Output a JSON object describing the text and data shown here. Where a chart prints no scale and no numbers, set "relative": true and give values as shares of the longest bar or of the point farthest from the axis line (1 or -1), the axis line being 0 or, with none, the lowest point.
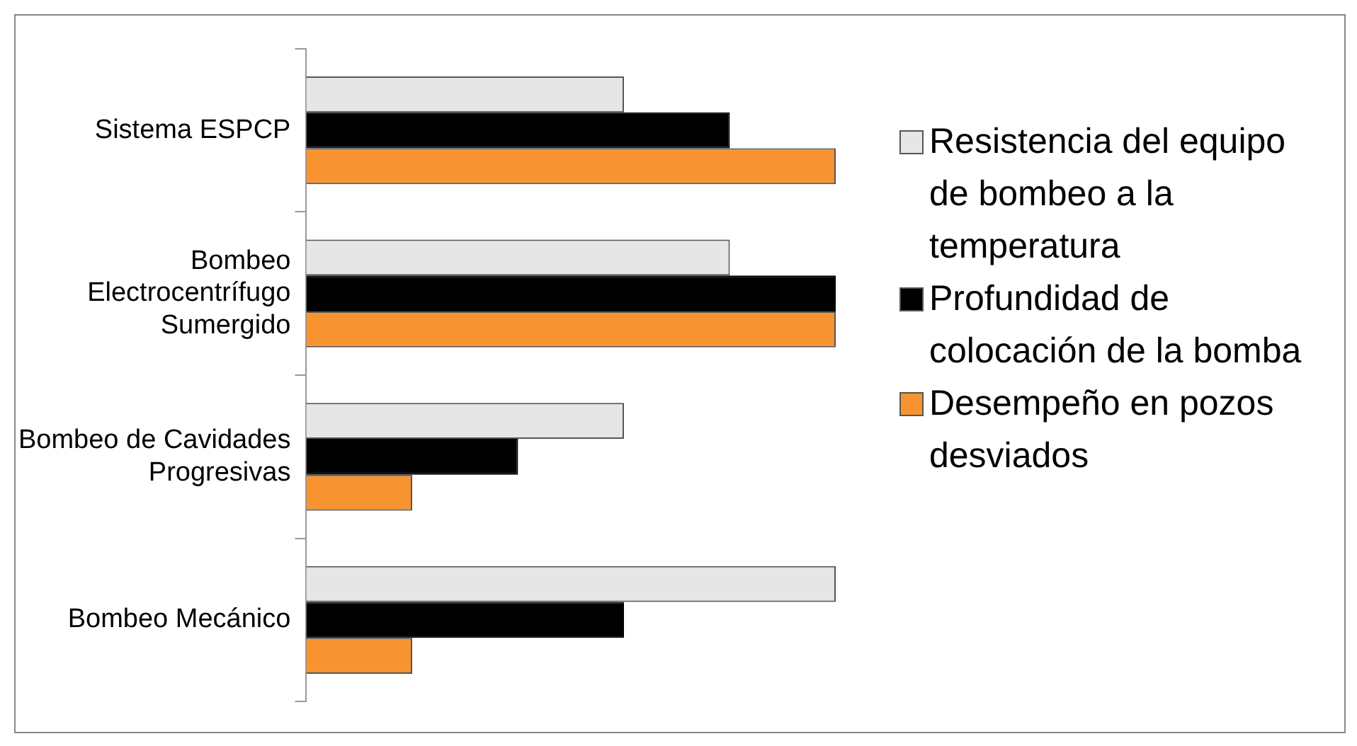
{
  "chart_data": {
    "type": "bar",
    "orientation": "horizontal",
    "relative": true,
    "legend": "right",
    "categories": [
      "Sistema ESPCP",
      "Bombeo Electrocentrífugo Sumergido",
      "Bombeo de Cavidades Progresivas",
      "Bombeo Mecánico"
    ],
    "series": [
      {
        "name": "Resistencia del equipo de bombeo a la temperatura",
        "color": "#e6e6e6",
        "values": [
          0.6,
          0.8,
          0.6,
          1
        ]
      },
      {
        "name": "Profundidad de colocación de la bomba",
        "color": "#000000",
        "values": [
          0.8,
          1,
          0.4,
          0.6
        ]
      },
      {
        "name": "Desempeño en pozos desviados",
        "color": "#f79431",
        "values": [
          1,
          1,
          0.2,
          0.2
        ]
      }
    ]
  }
}
